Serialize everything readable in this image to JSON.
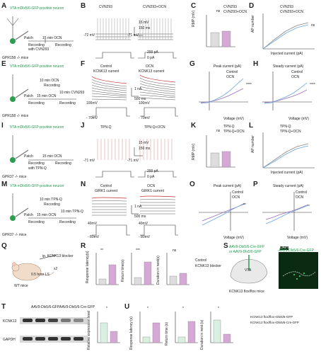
{
  "panels": {
    "A": {
      "letter": "A",
      "title": "VTA mDlx5/6-GFP-positive neuron",
      "patch": "Patch",
      "ocn": "15 min OCN",
      "rec1": "Recording",
      "rec2": "Recording",
      "with": "with CVN293",
      "mouse": "GPR158 -/- mice"
    },
    "B": {
      "letter": "B",
      "left_title": "CVN293",
      "right_title": "CVN293+OCN",
      "scale_v": "15 mV",
      "scale_t": "150 ms",
      "v_left": "-72 mV",
      "v_right": "-71 mV",
      "i_top": "200 pA",
      "i_bot": "0 pA"
    },
    "C": {
      "letter": "C",
      "ylabel": "RMP (mV)",
      "sig": "ns",
      "legend": [
        "CVN293",
        "CVN293+OCN"
      ],
      "yticks": [
        "-60",
        "-70",
        "-80"
      ]
    },
    "D": {
      "letter": "D",
      "ylabel": "AP number",
      "xlabel": "Injected current (pA)",
      "sig": "ns",
      "legend": [
        "CVN293",
        "CVN293+OCN"
      ]
    },
    "E": {
      "letter": "E",
      "title": "VTA mDlx5/6-GFP-positive neuron",
      "patch": "Patch",
      "ocn": "10 min OCN",
      "rec1": "Recording",
      "ocn2": "15 min OCN",
      "rec2": "Recording",
      "cvn": "10 min CVN293",
      "rec3": "Recording",
      "mouse": "GPR158 -/- mice"
    },
    "F": {
      "letter": "F",
      "left_title": "Control",
      "left_sub": "KCNK13 current",
      "right_title": "OCN",
      "right_sub": "KCNK13 current",
      "scale_i": "1 nA",
      "scale_t": "500 ms",
      "v_top": "100mV",
      "v_bot": "- 70mV",
      "v_top2": "100mV",
      "v_bot2": "- 70mV"
    },
    "G": {
      "letter": "G",
      "title": "Peak current (pA)",
      "legend": [
        "Control",
        "OCN"
      ],
      "sig": "****",
      "xlabel": "Voltage (mV)"
    },
    "H": {
      "letter": "H",
      "title": "Steady current (pA)",
      "legend": [
        "Control",
        "OCN"
      ],
      "sig": "****",
      "xlabel": "Voltage (mV)"
    },
    "I": {
      "letter": "I",
      "title": "VTA mDlx5/6-GFP-positive neuron",
      "patch": "Patch",
      "ocn": "15 min OCN",
      "rec1": "Recording",
      "rec2": "Recording",
      "with": "with TPN-Q",
      "mouse": "GPR37 -/- mice"
    },
    "J": {
      "letter": "J",
      "left_title": "TPN-Q",
      "right_title": "TPN-Q+OCN",
      "scale_v": "15 mV",
      "scale_t": "150 ms",
      "v_left": "-71 mV",
      "v_right": "-71 mV",
      "i_top": "200 pA",
      "i_bot": "0 pA"
    },
    "K": {
      "letter": "K",
      "ylabel": "RMP (mV)",
      "sig": "ns",
      "legend": [
        "TPN-Q",
        "TPN-Q+OCN"
      ]
    },
    "L": {
      "letter": "L",
      "ylabel": "AP number",
      "xlabel": "Injected current (pA)",
      "legend": [
        "TPN-Q",
        "TPN-Q+OCN"
      ]
    },
    "M": {
      "letter": "M",
      "title": "VTA mDlx5/6-GFP-positive neuron",
      "patch": "Patch",
      "ocn": "10 min TPN-Q",
      "rec1": "Recording",
      "ocn2": "15 min OCN",
      "rec2": "Recording",
      "cvn": "10 min TPN-Q",
      "rec3": "Recording",
      "mouse": "GPR37 -/- mice"
    },
    "N": {
      "letter": "N",
      "left_title": "Control",
      "left_sub": "GIRK1 current",
      "right_title": "OCN",
      "right_sub": "GIRK1 current",
      "scale_i": "1 nA",
      "scale_t": "500 ms",
      "v_top": "40mV",
      "v_bot": "- 80mV",
      "v_top2": "40mV",
      "v_bot2": "- 80mV"
    },
    "O": {
      "letter": "O",
      "title": "Peak current (pA)",
      "legend": [
        "Control",
        "OCN"
      ],
      "sig": "**",
      "xlabel": "Voltage (mV)"
    },
    "P": {
      "letter": "P",
      "title": "Steady current (pA)",
      "legend": [
        "Control",
        "OCN"
      ],
      "sig": "*",
      "xlabel": "Voltage (mV)"
    },
    "Q": {
      "letter": "Q",
      "drug": "ip. KCNK13 blocker",
      "time": "0.5 hour LS",
      "times": "x2",
      "mouse": "WT mice"
    },
    "R": {
      "letter": "R",
      "y1": "Response latency(s)",
      "y2": "Return time(s)",
      "y3": "Duration in nest(s)",
      "sig1": "**",
      "sig2": "***",
      "sig3": "ns",
      "legend": [
        "Control",
        "KCNK13 blocker"
      ]
    },
    "S": {
      "letter": "S",
      "virus1": "AAV9-Dlx5/6-Cre-GFP",
      "virus2": "or AAV9-Dlx5/6-GFP",
      "region": "VTA",
      "mouse": "KCNK13 flox/flox mice",
      "dapi": "DAPI",
      "stain": "AAV9-Dlx5/6-Cre-GFP"
    },
    "T": {
      "letter": "T",
      "col1": "AAV9-Dlx5/6-GFP",
      "col2": "AAV9-Dlx5/6-Cre-GFP",
      "band1": "KCNK13",
      "band2": "GAPDH",
      "ylabel": "Relative expression level",
      "sig": "*"
    },
    "U": {
      "letter": "U",
      "y1": "Response latency (s)",
      "y2": "Return time (s)",
      "y3": "Duration in nest (s)",
      "sig": "*",
      "legend": [
        "KCNK13 flox/flox+Dlx5/6-GFP",
        "KCNK13 flox/flox+Dlx5/6-Cre-GFP"
      ]
    }
  },
  "chart_data": [
    {
      "type": "scatter",
      "panel": "C",
      "series": [
        {
          "name": "CVN293",
          "values": [
            -71,
            -69,
            -70,
            -68,
            -72
          ]
        },
        {
          "name": "CVN293+OCN",
          "values": [
            -70,
            -68,
            -69,
            -67,
            -71
          ]
        }
      ],
      "ylabel": "RMP (mV)",
      "ylim": [
        -80,
        -60
      ]
    },
    {
      "type": "line",
      "panel": "D",
      "x": [
        0,
        50,
        100,
        150,
        200
      ],
      "series": [
        {
          "name": "CVN293",
          "values": [
            0,
            6,
            12,
            16,
            18
          ]
        },
        {
          "name": "CVN293+OCN",
          "values": [
            0,
            5,
            11,
            15,
            17
          ]
        }
      ],
      "xlabel": "Injected current (pA)",
      "ylabel": "AP number"
    },
    {
      "type": "line",
      "panel": "G",
      "x": [
        -70,
        -50,
        -30,
        -10,
        10,
        30,
        50,
        70,
        90
      ],
      "series": [
        {
          "name": "Control",
          "values": [
            -300,
            -100,
            200,
            500,
            900,
            1400,
            2000,
            2700,
            3500
          ]
        },
        {
          "name": "OCN",
          "values": [
            -350,
            -150,
            300,
            800,
            1500,
            2400,
            3400,
            4500,
            5800
          ]
        }
      ],
      "xlabel": "Voltage (mV)"
    },
    {
      "type": "line",
      "panel": "H",
      "x": [
        -70,
        -50,
        -30,
        -10,
        10,
        30,
        50,
        70,
        90
      ],
      "series": [
        {
          "name": "Control",
          "values": [
            -200,
            -50,
            100,
            300,
            550,
            850,
            1200,
            1600,
            2000
          ]
        },
        {
          "name": "OCN",
          "values": [
            -250,
            -80,
            200,
            500,
            900,
            1400,
            1900,
            2500,
            3000
          ]
        }
      ],
      "xlabel": "Voltage (mV)"
    },
    {
      "type": "scatter",
      "panel": "K",
      "series": [
        {
          "name": "TPN-Q",
          "values": [
            -70,
            -68,
            -72,
            -66,
            -71
          ]
        },
        {
          "name": "TPN-Q+OCN",
          "values": [
            -69,
            -67,
            -71,
            -65,
            -70
          ]
        }
      ],
      "ylabel": "RMP (mV)",
      "ylim": [
        -80,
        -60
      ]
    },
    {
      "type": "line",
      "panel": "L",
      "x": [
        0,
        50,
        100,
        150,
        200
      ],
      "series": [
        {
          "name": "TPN-Q",
          "values": [
            0,
            5,
            10,
            14,
            16
          ]
        },
        {
          "name": "TPN-Q+OCN",
          "values": [
            0,
            4,
            9,
            13,
            15
          ]
        }
      ],
      "xlabel": "Injected current (pA)",
      "ylabel": "AP number"
    },
    {
      "type": "line",
      "panel": "O",
      "x": [
        -80,
        -60,
        -40,
        -20,
        0,
        20,
        40
      ],
      "series": [
        {
          "name": "Control",
          "values": [
            -900,
            -600,
            -300,
            0,
            300,
            600,
            900
          ]
        },
        {
          "name": "OCN",
          "values": [
            -1400,
            -1000,
            -600,
            -200,
            200,
            600,
            1000
          ]
        }
      ],
      "xlabel": "Voltage (mV)"
    },
    {
      "type": "line",
      "panel": "P",
      "x": [
        -80,
        -60,
        -40,
        -20,
        0,
        20,
        40
      ],
      "series": [
        {
          "name": "Control",
          "values": [
            -700,
            -450,
            -200,
            0,
            250,
            500,
            800
          ]
        },
        {
          "name": "OCN",
          "values": [
            -1100,
            -800,
            -450,
            -150,
            150,
            450,
            750
          ]
        }
      ],
      "xlabel": "Voltage (mV)"
    },
    {
      "type": "bar",
      "panel": "R1",
      "categories": [
        "Control",
        "KCNK13 blocker"
      ],
      "values": [
        3,
        10
      ],
      "ylabel": "Response latency(s)"
    },
    {
      "type": "bar",
      "panel": "R2",
      "categories": [
        "Control",
        "KCNK13 blocker"
      ],
      "values": [
        4,
        12
      ],
      "ylabel": "Return time(s)"
    },
    {
      "type": "bar",
      "panel": "R3",
      "categories": [
        "Control",
        "KCNK13 blocker"
      ],
      "values": [
        5,
        7
      ],
      "ylabel": "Duration in nest(s)"
    },
    {
      "type": "bar",
      "panel": "T",
      "categories": [
        "AAV9-Dlx5/6-GFP",
        "AAV9-Dlx5/6-Cre-GFP"
      ],
      "values": [
        1.0,
        0.6
      ],
      "ylabel": "Relative expression level"
    },
    {
      "type": "bar",
      "panel": "U1",
      "categories": [
        "KCNK13 flox/flox+Dlx5/6-GFP",
        "KCNK13 flox/flox+Dlx5/6-Cre-GFP"
      ],
      "values": [
        3,
        10
      ],
      "ylabel": "Response latency (s)"
    },
    {
      "type": "bar",
      "panel": "U2",
      "categories": [
        "KCNK13 flox/flox+Dlx5/6-GFP",
        "KCNK13 flox/flox+Dlx5/6-Cre-GFP"
      ],
      "values": [
        3,
        11
      ],
      "ylabel": "Return time (s)"
    },
    {
      "type": "bar",
      "panel": "U3",
      "categories": [
        "KCNK13 flox/flox+Dlx5/6-GFP",
        "KCNK13 flox/flox+Dlx5/6-Cre-GFP"
      ],
      "values": [
        10,
        4
      ],
      "ylabel": "Duration in nest (s)"
    }
  ]
}
